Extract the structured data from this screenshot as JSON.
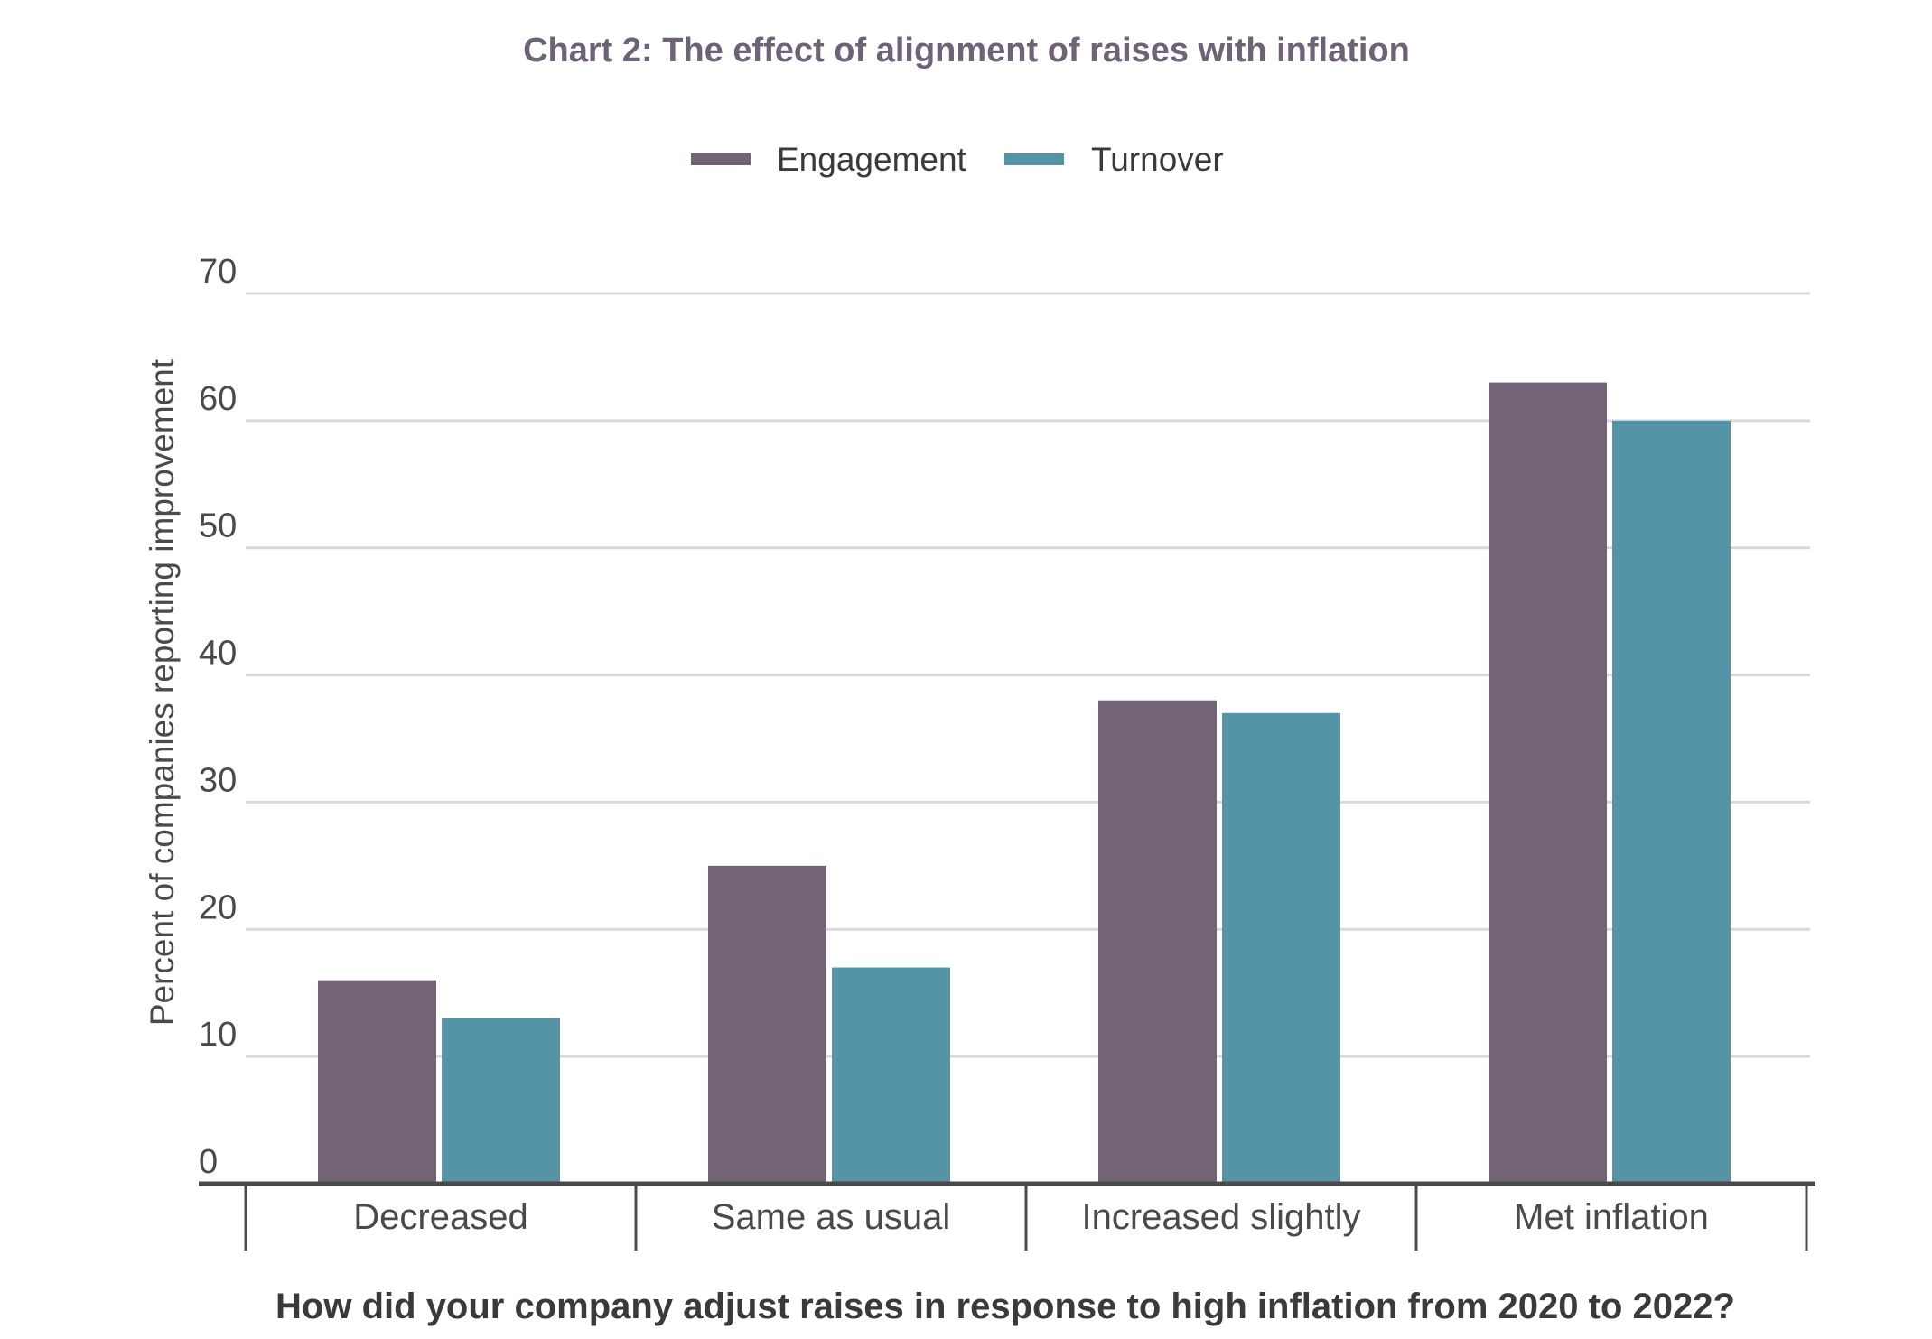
{
  "chart_data": {
    "type": "bar",
    "title": "Chart 2: The effect of alignment of raises with inflation",
    "xlabel": "How did your company adjust raises in response to high inflation from 2020 to 2022?",
    "ylabel": "Percent of companies reporting improvement",
    "categories": [
      "Decreased",
      "Same as usual",
      "Increased slightly",
      "Met inflation"
    ],
    "series": [
      {
        "name": "Engagement",
        "color": "#726476",
        "values": [
          16,
          25,
          38,
          63
        ]
      },
      {
        "name": "Turnover",
        "color": "#5494a6",
        "values": [
          13,
          17,
          37,
          60
        ]
      }
    ],
    "ylim": [
      0,
      70
    ],
    "yticks": [
      0,
      10,
      20,
      30,
      40,
      50,
      60,
      70
    ],
    "grid": true,
    "legend_position": "top-center",
    "colors": {
      "title": "#6e6376",
      "axis_text": "#4a4a4a",
      "xlabel": "#3a3a3a",
      "gridline": "#d9d9d9",
      "baseline": "#4a4a4a"
    }
  }
}
